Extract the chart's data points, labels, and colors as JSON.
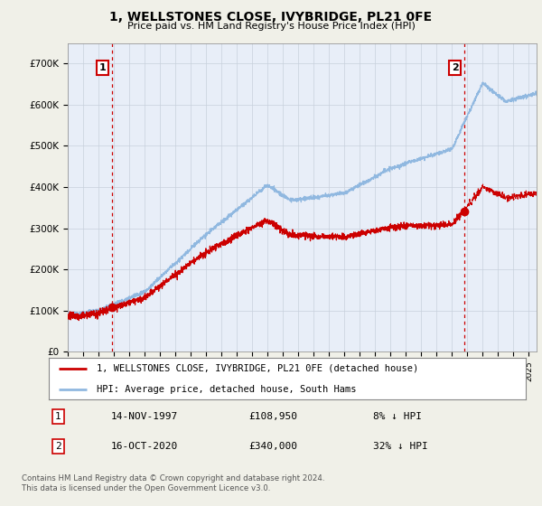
{
  "title": "1, WELLSTONES CLOSE, IVYBRIDGE, PL21 0FE",
  "subtitle": "Price paid vs. HM Land Registry's House Price Index (HPI)",
  "legend_line1": "1, WELLSTONES CLOSE, IVYBRIDGE, PL21 0FE (detached house)",
  "legend_line2": "HPI: Average price, detached house, South Hams",
  "annotation1_date": "14-NOV-1997",
  "annotation1_price": "£108,950",
  "annotation1_hpi": "8% ↓ HPI",
  "annotation2_date": "16-OCT-2020",
  "annotation2_price": "£340,000",
  "annotation2_hpi": "32% ↓ HPI",
  "footer": "Contains HM Land Registry data © Crown copyright and database right 2024.\nThis data is licensed under the Open Government Licence v3.0.",
  "hpi_color": "#90b8e0",
  "price_color": "#cc0000",
  "vline_color": "#cc0000",
  "background_color": "#f0f0e8",
  "plot_bg_color": "#e8eef8",
  "ylim": [
    0,
    750000
  ],
  "yticks": [
    0,
    100000,
    200000,
    300000,
    400000,
    500000,
    600000,
    700000
  ],
  "ytick_labels": [
    "£0",
    "£100K",
    "£200K",
    "£300K",
    "£400K",
    "£500K",
    "£600K",
    "£700K"
  ],
  "sale1_x": 1997.87,
  "sale1_y": 108950,
  "sale2_x": 2020.79,
  "sale2_y": 340000,
  "xmin": 1995.0,
  "xmax": 2025.5
}
